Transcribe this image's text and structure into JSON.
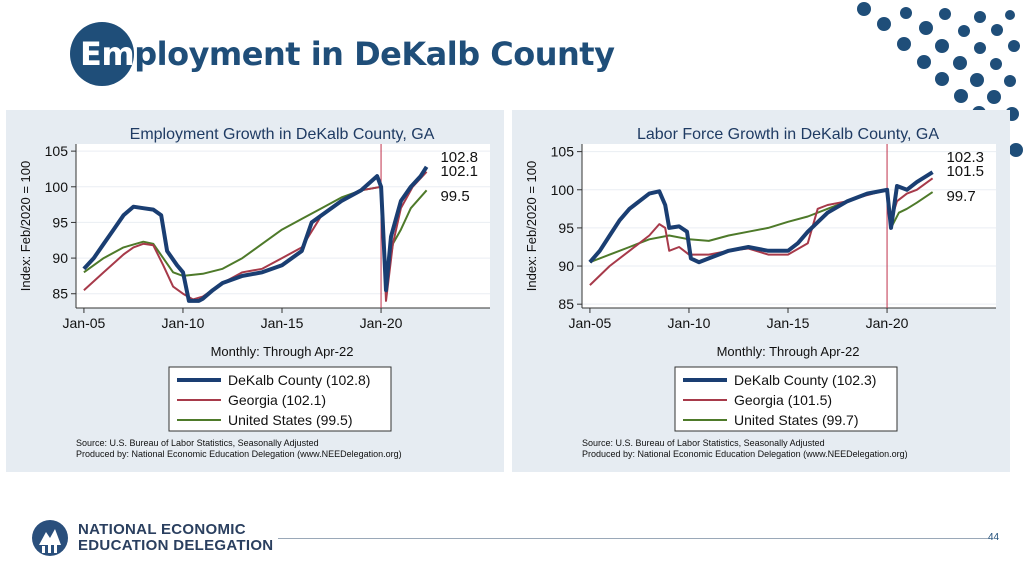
{
  "slide": {
    "title_em": "Em",
    "title_rest": "ployment in DeKalb County",
    "page_number": "44",
    "footer_line1": "NATIONAL ECONOMIC",
    "footer_line2": "EDUCATION DELEGATION",
    "brand_color": "#1f4e79"
  },
  "chart_data": [
    {
      "type": "line",
      "title": "Employment Growth in DeKalb County, GA",
      "ylabel": "Index: Feb/2020 = 100",
      "xlabel": "Monthly: Through Apr-22",
      "x_ticks": [
        "Jan-05",
        "Jan-10",
        "Jan-15",
        "Jan-20"
      ],
      "y_ticks": [
        85,
        90,
        95,
        100,
        105
      ],
      "ylim": [
        83,
        106
      ],
      "xlim": [
        2004.6,
        2025.5
      ],
      "reference_line": {
        "x": 2020.0,
        "color": "#c0304a"
      },
      "end_labels": [
        "102.8",
        "102.1",
        "99.5"
      ],
      "legend": [
        "DeKalb County (102.8)",
        "Georgia (102.1)",
        "United States (99.5)"
      ],
      "source": "Source: U.S. Bureau of Labor Statistics, Seasonally Adjusted",
      "produced": "Produced by: National Economic Education Delegation (www.NEEDelegation.org)",
      "series": [
        {
          "name": "DeKalb County",
          "color": "#1a3e72",
          "width": 4,
          "points": [
            [
              2005.0,
              88.5
            ],
            [
              2005.5,
              90
            ],
            [
              2006.0,
              92
            ],
            [
              2006.5,
              94
            ],
            [
              2007.0,
              96
            ],
            [
              2007.5,
              97.2
            ],
            [
              2008.0,
              97
            ],
            [
              2008.5,
              96.8
            ],
            [
              2008.9,
              96
            ],
            [
              2009.2,
              91
            ],
            [
              2009.7,
              89
            ],
            [
              2010.0,
              88
            ],
            [
              2010.3,
              84
            ],
            [
              2010.8,
              84
            ],
            [
              2011.0,
              84.3
            ],
            [
              2011.5,
              85.5
            ],
            [
              2012.0,
              86.5
            ],
            [
              2013.0,
              87.5
            ],
            [
              2014.0,
              88
            ],
            [
              2015.0,
              89
            ],
            [
              2016.0,
              91
            ],
            [
              2016.5,
              95
            ],
            [
              2017.0,
              96
            ],
            [
              2018.0,
              98
            ],
            [
              2019.0,
              99.5
            ],
            [
              2019.8,
              101.5
            ],
            [
              2020.0,
              100
            ],
            [
              2020.25,
              85.5
            ],
            [
              2020.5,
              93
            ],
            [
              2021.0,
              98
            ],
            [
              2021.5,
              100
            ],
            [
              2022.0,
              101.5
            ],
            [
              2022.3,
              102.8
            ]
          ]
        },
        {
          "name": "Georgia",
          "color": "#a73a4a",
          "width": 2,
          "points": [
            [
              2005.0,
              85.5
            ],
            [
              2006.0,
              88
            ],
            [
              2007.0,
              90.5
            ],
            [
              2007.5,
              91.5
            ],
            [
              2008.0,
              92
            ],
            [
              2008.5,
              91.8
            ],
            [
              2009.0,
              89
            ],
            [
              2009.5,
              86
            ],
            [
              2010.0,
              85
            ],
            [
              2010.5,
              84.2
            ],
            [
              2011.0,
              84.6
            ],
            [
              2012.0,
              86.5
            ],
            [
              2013.0,
              88
            ],
            [
              2014.0,
              88.5
            ],
            [
              2015.0,
              90
            ],
            [
              2016.0,
              91.5
            ],
            [
              2017.0,
              96
            ],
            [
              2018.0,
              98
            ],
            [
              2019.0,
              99.5
            ],
            [
              2020.0,
              100
            ],
            [
              2020.25,
              84
            ],
            [
              2020.6,
              92
            ],
            [
              2021.0,
              97
            ],
            [
              2021.6,
              100
            ],
            [
              2022.3,
              102.1
            ]
          ]
        },
        {
          "name": "United States",
          "color": "#4e7a2a",
          "width": 2,
          "points": [
            [
              2005.0,
              88
            ],
            [
              2006.0,
              90
            ],
            [
              2007.0,
              91.5
            ],
            [
              2008.0,
              92.3
            ],
            [
              2008.5,
              92
            ],
            [
              2009.0,
              90
            ],
            [
              2009.5,
              88
            ],
            [
              2010.0,
              87.5
            ],
            [
              2011.0,
              87.8
            ],
            [
              2012.0,
              88.5
            ],
            [
              2013.0,
              90
            ],
            [
              2014.0,
              92
            ],
            [
              2015.0,
              94
            ],
            [
              2016.0,
              95.5
            ],
            [
              2017.0,
              97
            ],
            [
              2018.0,
              98.5
            ],
            [
              2019.0,
              99.5
            ],
            [
              2020.0,
              100
            ],
            [
              2020.25,
              86
            ],
            [
              2020.6,
              92
            ],
            [
              2021.0,
              94
            ],
            [
              2021.5,
              97
            ],
            [
              2022.3,
              99.5
            ]
          ]
        }
      ]
    },
    {
      "type": "line",
      "title": "Labor Force Growth in DeKalb County, GA",
      "ylabel": "Index: Feb/2020 = 100",
      "xlabel": "Monthly: Through Apr-22",
      "x_ticks": [
        "Jan-05",
        "Jan-10",
        "Jan-15",
        "Jan-20"
      ],
      "y_ticks": [
        85,
        90,
        95,
        100,
        105
      ],
      "ylim": [
        84.5,
        106
      ],
      "xlim": [
        2004.6,
        2025.5
      ],
      "reference_line": {
        "x": 2020.0,
        "color": "#c0304a"
      },
      "end_labels": [
        "102.3",
        "101.5",
        "99.7"
      ],
      "legend": [
        "DeKalb County (102.3)",
        "Georgia (101.5)",
        "United States (99.7)"
      ],
      "source": "Source: U.S. Bureau of Labor Statistics, Seasonally Adjusted",
      "produced": "Produced by: National Economic Education Delegation (www.NEEDelegation.org)",
      "series": [
        {
          "name": "DeKalb County",
          "color": "#1a3e72",
          "width": 4,
          "points": [
            [
              2005.0,
              90.5
            ],
            [
              2005.5,
              92
            ],
            [
              2006.0,
              94
            ],
            [
              2006.5,
              96
            ],
            [
              2007.0,
              97.5
            ],
            [
              2007.5,
              98.5
            ],
            [
              2008.0,
              99.5
            ],
            [
              2008.5,
              99.8
            ],
            [
              2008.8,
              98
            ],
            [
              2009.0,
              95
            ],
            [
              2009.5,
              95.2
            ],
            [
              2009.9,
              94.5
            ],
            [
              2010.1,
              91
            ],
            [
              2010.5,
              90.5
            ],
            [
              2011.0,
              91
            ],
            [
              2012.0,
              92
            ],
            [
              2013.0,
              92.5
            ],
            [
              2014.0,
              92
            ],
            [
              2015.0,
              92
            ],
            [
              2015.5,
              93
            ],
            [
              2016.0,
              94.5
            ],
            [
              2017.0,
              97
            ],
            [
              2018.0,
              98.5
            ],
            [
              2019.0,
              99.5
            ],
            [
              2020.0,
              100
            ],
            [
              2020.2,
              95
            ],
            [
              2020.5,
              100.5
            ],
            [
              2021.0,
              100
            ],
            [
              2021.5,
              101
            ],
            [
              2022.3,
              102.3
            ]
          ]
        },
        {
          "name": "Georgia",
          "color": "#a73a4a",
          "width": 2,
          "points": [
            [
              2005.0,
              87.5
            ],
            [
              2006.0,
              90
            ],
            [
              2007.0,
              92
            ],
            [
              2008.0,
              94
            ],
            [
              2008.5,
              95.5
            ],
            [
              2008.8,
              95
            ],
            [
              2009.0,
              92
            ],
            [
              2009.5,
              92.5
            ],
            [
              2010.0,
              91.5
            ],
            [
              2011.0,
              91.5
            ],
            [
              2012.0,
              92
            ],
            [
              2013.0,
              92.3
            ],
            [
              2014.0,
              91.5
            ],
            [
              2015.0,
              91.5
            ],
            [
              2016.0,
              93
            ],
            [
              2016.5,
              97.5
            ],
            [
              2017.0,
              98
            ],
            [
              2018.0,
              98.5
            ],
            [
              2019.0,
              99.3
            ],
            [
              2020.0,
              100
            ],
            [
              2020.2,
              96
            ],
            [
              2020.5,
              98.5
            ],
            [
              2021.0,
              99.5
            ],
            [
              2021.5,
              100
            ],
            [
              2022.3,
              101.5
            ]
          ]
        },
        {
          "name": "United States",
          "color": "#4e7a2a",
          "width": 2,
          "points": [
            [
              2005.0,
              90.5
            ],
            [
              2006.0,
              91.5
            ],
            [
              2007.0,
              92.5
            ],
            [
              2008.0,
              93.5
            ],
            [
              2009.0,
              94
            ],
            [
              2010.0,
              93.5
            ],
            [
              2011.0,
              93.3
            ],
            [
              2012.0,
              94
            ],
            [
              2013.0,
              94.5
            ],
            [
              2014.0,
              95
            ],
            [
              2015.0,
              95.8
            ],
            [
              2016.0,
              96.5
            ],
            [
              2017.0,
              97.5
            ],
            [
              2018.0,
              98.5
            ],
            [
              2019.0,
              99.5
            ],
            [
              2020.0,
              100
            ],
            [
              2020.2,
              95
            ],
            [
              2020.6,
              97
            ],
            [
              2021.0,
              97.5
            ],
            [
              2021.5,
              98.3
            ],
            [
              2022.3,
              99.7
            ]
          ]
        }
      ]
    }
  ]
}
